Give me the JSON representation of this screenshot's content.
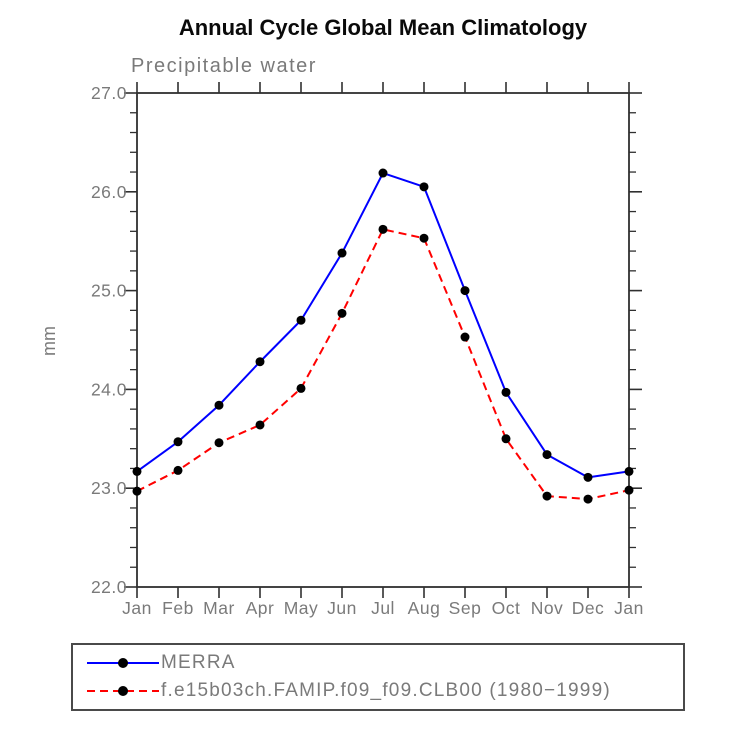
{
  "colors": {
    "background": "#ffffff",
    "title_text": "#0a0a0a",
    "label_text": "#7a7a7a",
    "axis": "#303030",
    "legend_border": "#4a4a4a",
    "merra_line": "#0000ff",
    "model_line": "#ff0000",
    "marker": "#000000"
  },
  "chart_data": {
    "type": "line",
    "title": "Annual Cycle Global Mean Climatology",
    "subtitle": "Precipitable water",
    "xlabel": "",
    "ylabel": "mm",
    "categories": [
      "Jan",
      "Feb",
      "Mar",
      "Apr",
      "May",
      "Jun",
      "Jul",
      "Aug",
      "Sep",
      "Oct",
      "Nov",
      "Dec",
      "Jan"
    ],
    "ylim": [
      22.0,
      27.0
    ],
    "ytick_labels": [
      "27.0",
      "26.0",
      "25.0",
      "24.0",
      "23.0",
      "22.0"
    ],
    "minor_tick_step": 0.2,
    "grid": false,
    "legend_position": "bottom-left-boxed",
    "series": [
      {
        "name": "MERRA",
        "color": "#0000ff",
        "line_style": "solid",
        "marker": "filled-circle",
        "marker_color": "#000000",
        "values": [
          23.17,
          23.47,
          23.84,
          24.28,
          24.7,
          25.38,
          26.19,
          26.05,
          25.0,
          23.97,
          23.34,
          23.11,
          23.17
        ]
      },
      {
        "name": "f.e15b03ch.FAMIP.f09_f09.CLB00 (1980−1999)",
        "color": "#ff0000",
        "line_style": "dashed",
        "marker": "filled-circle",
        "marker_color": "#000000",
        "values": [
          22.97,
          23.18,
          23.46,
          23.64,
          24.01,
          24.77,
          25.62,
          25.53,
          24.53,
          23.5,
          22.92,
          22.89,
          22.98
        ]
      }
    ]
  }
}
